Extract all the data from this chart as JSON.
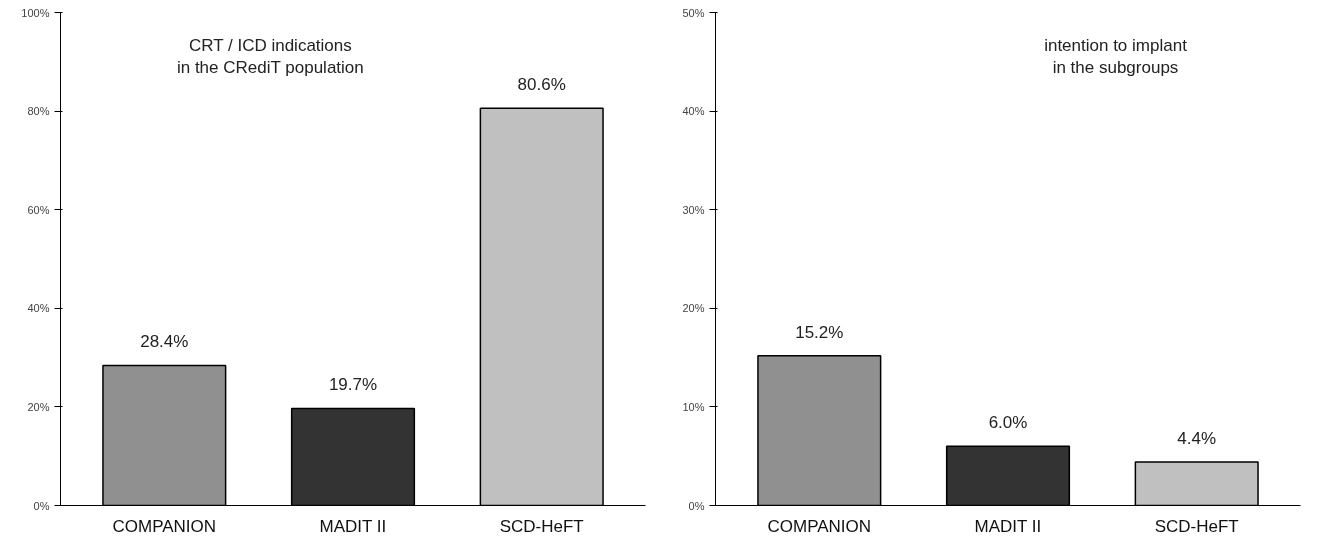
{
  "chart_data": [
    {
      "type": "bar",
      "annotations": [
        "CRT / ICD indications\nin the CRediT population"
      ],
      "categories": [
        "COMPANION",
        "MADIT II",
        "SCD-HeFT"
      ],
      "values": [
        28.4,
        19.7,
        80.6
      ],
      "colors": [
        "#909090",
        "#333333",
        "#c0c0c0"
      ],
      "value_labels": [
        "28.4%",
        "19.7%",
        "80.6%"
      ],
      "ylim": [
        0,
        100
      ],
      "yticks": [
        {
          "value": 0,
          "label": "0%"
        },
        {
          "value": 20,
          "label": "20%"
        },
        {
          "value": 40,
          "label": "40%"
        },
        {
          "value": 60,
          "label": "60%"
        },
        {
          "value": 80,
          "label": "80%"
        },
        {
          "value": 100,
          "label": "100%"
        }
      ],
      "grid": false
    },
    {
      "type": "bar",
      "annotations": [
        "intention to implant\nin the subgroups"
      ],
      "categories": [
        "COMPANION",
        "MADIT II",
        "SCD-HeFT"
      ],
      "values": [
        15.2,
        6.0,
        4.4
      ],
      "colors": [
        "#909090",
        "#333333",
        "#c0c0c0"
      ],
      "value_labels": [
        "15.2%",
        "6.0%",
        "4.4%"
      ],
      "ylim": [
        0,
        50
      ],
      "yticks": [
        {
          "value": 0,
          "label": "0%"
        },
        {
          "value": 10,
          "label": "10%"
        },
        {
          "value": 20,
          "label": "20%"
        },
        {
          "value": 30,
          "label": "30%"
        },
        {
          "value": 40,
          "label": "40%"
        },
        {
          "value": 50,
          "label": "50%"
        }
      ],
      "grid": false
    }
  ]
}
